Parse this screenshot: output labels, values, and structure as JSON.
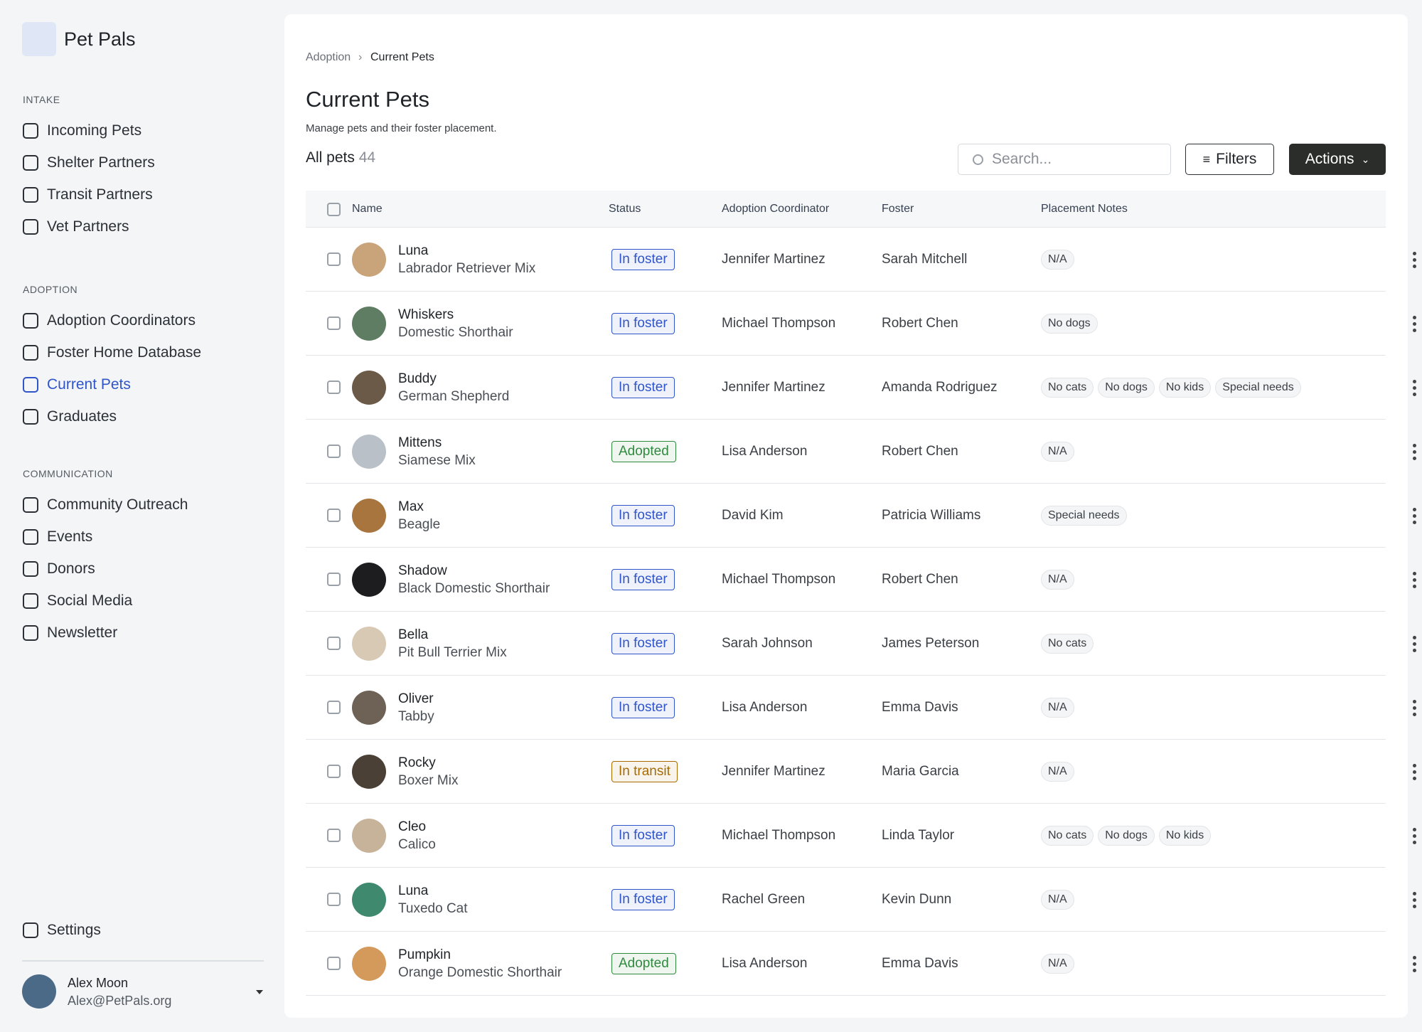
{
  "sidebar": {
    "brand": "Pet Pals",
    "sections": [
      {
        "label": "INTAKE",
        "items": [
          {
            "label": "Incoming Pets"
          },
          {
            "label": "Shelter Partners"
          },
          {
            "label": "Transit Partners"
          },
          {
            "label": "Vet Partners"
          }
        ]
      },
      {
        "label": "ADOPTION",
        "items": [
          {
            "label": "Adoption Coordinators"
          },
          {
            "label": "Foster Home Database"
          },
          {
            "label": "Current Pets",
            "active": true
          },
          {
            "label": "Graduates"
          }
        ]
      },
      {
        "label": "COMMUNICATION",
        "items": [
          {
            "label": "Community Outreach"
          },
          {
            "label": "Events"
          },
          {
            "label": "Donors"
          },
          {
            "label": "Social Media"
          },
          {
            "label": "Newsletter"
          }
        ]
      }
    ],
    "settings": "Settings",
    "user": {
      "name": "Alex Moon",
      "email": "Alex@PetPals.org"
    }
  },
  "header": {
    "breadcrumb": [
      "Adoption",
      "Current Pets"
    ],
    "title": "Current Pets",
    "subtitle": "Manage pets and their foster placement.",
    "count_label": "All pets",
    "count": "44",
    "search_placeholder": "Search...",
    "filters": "Filters",
    "actions": "Actions"
  },
  "table": {
    "columns": [
      "Name",
      "Status",
      "Adoption Coordinator",
      "Foster",
      "Placement Notes"
    ],
    "rows": [
      {
        "name": "Luna",
        "breed": "Labrador Retriever Mix",
        "status": "In foster",
        "status_color": "#2f55c9",
        "coordinator": "Jennifer Martinez",
        "foster": "Sarah Mitchell",
        "notes": [
          "N/A"
        ]
      },
      {
        "name": "Whiskers",
        "breed": "Domestic Shorthair",
        "status": "In foster",
        "status_color": "#2f55c9",
        "coordinator": "Michael Thompson",
        "foster": "Robert Chen",
        "notes": [
          "No dogs"
        ]
      },
      {
        "name": "Buddy",
        "breed": "German Shepherd",
        "status": "In foster",
        "status_color": "#2f55c9",
        "coordinator": "Jennifer Martinez",
        "foster": "Amanda Rodriguez",
        "notes": [
          "No cats",
          "No dogs",
          "No kids",
          "Special needs"
        ]
      },
      {
        "name": "Mittens",
        "breed": "Siamese Mix",
        "status": "Adopted",
        "status_color": "#2f8a3e",
        "coordinator": "Lisa Anderson",
        "foster": "Robert Chen",
        "notes": [
          "N/A"
        ]
      },
      {
        "name": "Max",
        "breed": "Beagle",
        "status": "In foster",
        "status_color": "#2f55c9",
        "coordinator": "David Kim",
        "foster": "Patricia Williams",
        "notes": [
          "Special needs"
        ]
      },
      {
        "name": "Shadow",
        "breed": "Black Domestic Shorthair",
        "status": "In foster",
        "status_color": "#2f55c9",
        "coordinator": "Michael Thompson",
        "foster": "Robert Chen",
        "notes": [
          "N/A"
        ]
      },
      {
        "name": "Bella",
        "breed": "Pit Bull Terrier Mix",
        "status": "In foster",
        "status_color": "#2f55c9",
        "coordinator": "Sarah Johnson",
        "foster": "James Peterson",
        "notes": [
          "No cats"
        ]
      },
      {
        "name": "Oliver",
        "breed": "Tabby",
        "status": "In foster",
        "status_color": "#2f55c9",
        "coordinator": "Lisa Anderson",
        "foster": "Emma Davis",
        "notes": [
          "N/A"
        ]
      },
      {
        "name": "Rocky",
        "breed": "Boxer Mix",
        "status": "In transit",
        "status_color": "#a86b00",
        "coordinator": "Jennifer Martinez",
        "foster": "Maria Garcia",
        "notes": [
          "N/A"
        ]
      },
      {
        "name": "Cleo",
        "breed": "Calico",
        "status": "In foster",
        "status_color": "#2f55c9",
        "coordinator": "Michael Thompson",
        "foster": "Linda Taylor",
        "notes": [
          "No cats",
          "No dogs",
          "No kids"
        ]
      },
      {
        "name": "Luna",
        "breed": "Tuxedo Cat",
        "status": "In foster",
        "status_color": "#2f55c9",
        "coordinator": "Rachel Green",
        "foster": "Kevin Dunn",
        "notes": [
          "N/A"
        ]
      },
      {
        "name": "Pumpkin",
        "breed": "Orange Domestic Shorthair",
        "status": "Adopted",
        "status_color": "#2f8a3e",
        "coordinator": "Lisa Anderson",
        "foster": "Emma Davis",
        "notes": [
          "N/A"
        ]
      }
    ]
  }
}
